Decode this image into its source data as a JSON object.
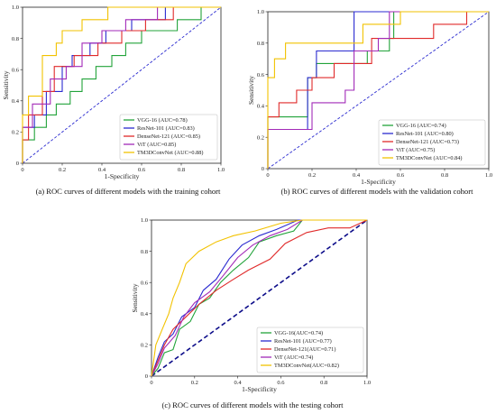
{
  "chart_data": [
    {
      "type": "line",
      "caption": "(a) ROC curves of different models with the training cohort",
      "xlabel": "1-Specificity",
      "ylabel": "Sensitivity",
      "xlim": [
        0,
        1
      ],
      "ylim": [
        0,
        1
      ],
      "xticks": [
        "0",
        "0.2",
        "0.4",
        "0.6",
        "0.8",
        "1.0"
      ],
      "yticks": [
        "0",
        "0.2",
        "0.4",
        "0.6",
        "0.8",
        "1.0"
      ],
      "legend_position": "lower-right",
      "chance_line": {
        "color": "#2b2bd0",
        "style": "dashed"
      },
      "series": [
        {
          "name": "VGG-16 (AUC=0.78)",
          "color": "#22a33a",
          "points": [
            [
              0,
              0
            ],
            [
              0,
              0.15
            ],
            [
              0.06,
              0.15
            ],
            [
              0.06,
              0.23
            ],
            [
              0.12,
              0.23
            ],
            [
              0.12,
              0.31
            ],
            [
              0.17,
              0.31
            ],
            [
              0.17,
              0.38
            ],
            [
              0.24,
              0.38
            ],
            [
              0.24,
              0.46
            ],
            [
              0.3,
              0.46
            ],
            [
              0.3,
              0.54
            ],
            [
              0.37,
              0.54
            ],
            [
              0.37,
              0.62
            ],
            [
              0.45,
              0.62
            ],
            [
              0.45,
              0.69
            ],
            [
              0.52,
              0.69
            ],
            [
              0.52,
              0.77
            ],
            [
              0.6,
              0.77
            ],
            [
              0.6,
              0.85
            ],
            [
              0.78,
              0.85
            ],
            [
              0.78,
              0.92
            ],
            [
              0.9,
              0.92
            ],
            [
              0.9,
              1
            ],
            [
              1,
              1
            ]
          ]
        },
        {
          "name": "ResNet-101 (AUC=0.83)",
          "color": "#2b2bd0",
          "points": [
            [
              0,
              0
            ],
            [
              0,
              0.23
            ],
            [
              0.06,
              0.23
            ],
            [
              0.06,
              0.31
            ],
            [
              0.12,
              0.31
            ],
            [
              0.12,
              0.46
            ],
            [
              0.2,
              0.46
            ],
            [
              0.2,
              0.62
            ],
            [
              0.25,
              0.62
            ],
            [
              0.25,
              0.69
            ],
            [
              0.34,
              0.69
            ],
            [
              0.34,
              0.77
            ],
            [
              0.42,
              0.77
            ],
            [
              0.42,
              0.85
            ],
            [
              0.55,
              0.85
            ],
            [
              0.55,
              0.92
            ],
            [
              0.72,
              0.92
            ],
            [
              0.72,
              1
            ],
            [
              1,
              1
            ]
          ]
        },
        {
          "name": "DenseNet-121 (AUC=0.85)",
          "color": "#e02a2a",
          "points": [
            [
              0,
              0
            ],
            [
              0,
              0.15
            ],
            [
              0.03,
              0.15
            ],
            [
              0.03,
              0.31
            ],
            [
              0.1,
              0.31
            ],
            [
              0.1,
              0.46
            ],
            [
              0.16,
              0.46
            ],
            [
              0.16,
              0.62
            ],
            [
              0.26,
              0.62
            ],
            [
              0.26,
              0.69
            ],
            [
              0.38,
              0.69
            ],
            [
              0.38,
              0.77
            ],
            [
              0.5,
              0.77
            ],
            [
              0.5,
              0.85
            ],
            [
              0.62,
              0.85
            ],
            [
              0.62,
              0.92
            ],
            [
              0.76,
              0.92
            ],
            [
              0.76,
              1
            ],
            [
              1,
              1
            ]
          ]
        },
        {
          "name": "ViT (AUC=0.85)",
          "color": "#a22ab8",
          "points": [
            [
              0,
              0
            ],
            [
              0,
              0.23
            ],
            [
              0.05,
              0.23
            ],
            [
              0.05,
              0.38
            ],
            [
              0.14,
              0.38
            ],
            [
              0.14,
              0.54
            ],
            [
              0.22,
              0.54
            ],
            [
              0.22,
              0.62
            ],
            [
              0.3,
              0.62
            ],
            [
              0.3,
              0.77
            ],
            [
              0.4,
              0.77
            ],
            [
              0.4,
              0.85
            ],
            [
              0.52,
              0.85
            ],
            [
              0.52,
              0.92
            ],
            [
              0.68,
              0.92
            ],
            [
              0.68,
              1
            ],
            [
              1,
              1
            ]
          ]
        },
        {
          "name": "TM3DConvNet (AUC=0.88)",
          "color": "#f2c200",
          "points": [
            [
              0,
              0
            ],
            [
              0,
              0.31
            ],
            [
              0.03,
              0.31
            ],
            [
              0.03,
              0.43
            ],
            [
              0.1,
              0.43
            ],
            [
              0.1,
              0.69
            ],
            [
              0.17,
              0.69
            ],
            [
              0.17,
              0.77
            ],
            [
              0.2,
              0.77
            ],
            [
              0.2,
              0.85
            ],
            [
              0.3,
              0.85
            ],
            [
              0.3,
              0.92
            ],
            [
              0.43,
              0.92
            ],
            [
              0.43,
              1
            ],
            [
              1,
              1
            ]
          ]
        }
      ]
    },
    {
      "type": "line",
      "caption": "(b) ROC curves of different models with the validation cohort",
      "xlabel": "1-Specificity",
      "ylabel": "Sensitivity",
      "xlim": [
        0,
        1
      ],
      "ylim": [
        0,
        1
      ],
      "xticks": [
        "0",
        "0.2",
        "0.4",
        "0.6",
        "0.8",
        "1.0"
      ],
      "yticks": [
        "0",
        "0.2",
        "0.4",
        "0.6",
        "0.8",
        "1.0"
      ],
      "legend_position": "lower-right",
      "chance_line": {
        "color": "#2b2bd0",
        "style": "dashed"
      },
      "series": [
        {
          "name": "VGG-16 (AUC=0.74)",
          "color": "#22a33a",
          "points": [
            [
              0,
              0
            ],
            [
              0,
              0.33
            ],
            [
              0.18,
              0.33
            ],
            [
              0.18,
              0.58
            ],
            [
              0.22,
              0.58
            ],
            [
              0.22,
              0.67
            ],
            [
              0.45,
              0.67
            ],
            [
              0.45,
              0.75
            ],
            [
              0.55,
              0.75
            ],
            [
              0.55,
              0.83
            ],
            [
              0.57,
              0.83
            ],
            [
              0.57,
              1
            ],
            [
              1,
              1
            ]
          ]
        },
        {
          "name": "ResNet-101 (AUC=0.80)",
          "color": "#2b2bd0",
          "points": [
            [
              0,
              0
            ],
            [
              0,
              0.25
            ],
            [
              0.18,
              0.25
            ],
            [
              0.18,
              0.58
            ],
            [
              0.22,
              0.58
            ],
            [
              0.22,
              0.75
            ],
            [
              0.39,
              0.75
            ],
            [
              0.39,
              1
            ],
            [
              1,
              1
            ]
          ]
        },
        {
          "name": "DenseNet-121 (AUC=0.73)",
          "color": "#e02a2a",
          "points": [
            [
              0,
              0
            ],
            [
              0,
              0.33
            ],
            [
              0.05,
              0.33
            ],
            [
              0.05,
              0.42
            ],
            [
              0.13,
              0.42
            ],
            [
              0.13,
              0.5
            ],
            [
              0.2,
              0.5
            ],
            [
              0.2,
              0.58
            ],
            [
              0.3,
              0.58
            ],
            [
              0.3,
              0.67
            ],
            [
              0.47,
              0.67
            ],
            [
              0.47,
              0.83
            ],
            [
              0.75,
              0.83
            ],
            [
              0.75,
              0.92
            ],
            [
              0.9,
              0.92
            ],
            [
              0.9,
              1
            ],
            [
              1,
              1
            ]
          ]
        },
        {
          "name": "ViT (AUC=0.75)",
          "color": "#a22ab8",
          "points": [
            [
              0,
              0
            ],
            [
              0,
              0.25
            ],
            [
              0.2,
              0.25
            ],
            [
              0.2,
              0.42
            ],
            [
              0.35,
              0.42
            ],
            [
              0.35,
              0.5
            ],
            [
              0.39,
              0.5
            ],
            [
              0.39,
              0.75
            ],
            [
              0.5,
              0.75
            ],
            [
              0.5,
              0.83
            ],
            [
              0.55,
              0.83
            ],
            [
              0.55,
              1
            ],
            [
              1,
              1
            ]
          ]
        },
        {
          "name": "TM3DConvNet (AUC=0.84)",
          "color": "#f2c200",
          "points": [
            [
              0,
              0
            ],
            [
              0,
              0.58
            ],
            [
              0.03,
              0.58
            ],
            [
              0.03,
              0.7
            ],
            [
              0.08,
              0.7
            ],
            [
              0.08,
              0.8
            ],
            [
              0.15,
              0.8
            ],
            [
              0.15,
              0.8
            ],
            [
              0.43,
              0.8
            ],
            [
              0.43,
              0.92
            ],
            [
              0.6,
              0.92
            ],
            [
              0.6,
              1
            ],
            [
              1,
              1
            ]
          ]
        }
      ]
    },
    {
      "type": "line",
      "caption": "(c) ROC curves of different models with the testing cohort",
      "xlabel": "1-Specificity",
      "ylabel": "Sensitivity",
      "xlim": [
        0,
        1
      ],
      "ylim": [
        0,
        1
      ],
      "xticks": [
        "0",
        "0.2",
        "0.4",
        "0.6",
        "0.8",
        "1.0"
      ],
      "yticks": [
        "0",
        "0.2",
        "0.4",
        "0.6",
        "0.8",
        "1.0"
      ],
      "legend_position": "lower-right",
      "chance_line": {
        "color": "#0d0d8a",
        "style": "dashed"
      },
      "series": [
        {
          "name": "VGG-16(AUC=0.74)",
          "color": "#22a33a",
          "points": [
            [
              0,
              0
            ],
            [
              0.03,
              0.05
            ],
            [
              0.06,
              0.15
            ],
            [
              0.1,
              0.17
            ],
            [
              0.13,
              0.3
            ],
            [
              0.18,
              0.35
            ],
            [
              0.22,
              0.46
            ],
            [
              0.27,
              0.5
            ],
            [
              0.32,
              0.6
            ],
            [
              0.38,
              0.68
            ],
            [
              0.45,
              0.76
            ],
            [
              0.5,
              0.86
            ],
            [
              0.58,
              0.9
            ],
            [
              0.66,
              0.93
            ],
            [
              0.7,
              1
            ],
            [
              1,
              1
            ]
          ]
        },
        {
          "name": "ResNet-101 (AUC=0.77)",
          "color": "#2b2bd0",
          "points": [
            [
              0,
              0
            ],
            [
              0.03,
              0.12
            ],
            [
              0.06,
              0.22
            ],
            [
              0.1,
              0.27
            ],
            [
              0.14,
              0.38
            ],
            [
              0.2,
              0.44
            ],
            [
              0.24,
              0.55
            ],
            [
              0.3,
              0.62
            ],
            [
              0.36,
              0.75
            ],
            [
              0.42,
              0.84
            ],
            [
              0.5,
              0.9
            ],
            [
              0.58,
              0.94
            ],
            [
              0.68,
              1
            ],
            [
              1,
              1
            ]
          ]
        },
        {
          "name": "DenseNet-121(AUC=0.71)",
          "color": "#e02a2a",
          "points": [
            [
              0,
              0
            ],
            [
              0.03,
              0.1
            ],
            [
              0.06,
              0.2
            ],
            [
              0.1,
              0.3
            ],
            [
              0.16,
              0.38
            ],
            [
              0.22,
              0.46
            ],
            [
              0.3,
              0.55
            ],
            [
              0.38,
              0.62
            ],
            [
              0.45,
              0.68
            ],
            [
              0.55,
              0.75
            ],
            [
              0.62,
              0.85
            ],
            [
              0.72,
              0.92
            ],
            [
              0.82,
              0.95
            ],
            [
              0.92,
              0.95
            ],
            [
              1,
              1
            ]
          ]
        },
        {
          "name": "ViT (AUC=0.74)",
          "color": "#a22ab8",
          "points": [
            [
              0,
              0
            ],
            [
              0.03,
              0.08
            ],
            [
              0.06,
              0.18
            ],
            [
              0.11,
              0.26
            ],
            [
              0.15,
              0.38
            ],
            [
              0.2,
              0.47
            ],
            [
              0.27,
              0.54
            ],
            [
              0.33,
              0.64
            ],
            [
              0.4,
              0.76
            ],
            [
              0.47,
              0.84
            ],
            [
              0.55,
              0.9
            ],
            [
              0.63,
              0.94
            ],
            [
              0.7,
              1
            ],
            [
              1,
              1
            ]
          ]
        },
        {
          "name": "TM3DConvNet(AUC=0.82)",
          "color": "#f2c200",
          "points": [
            [
              0,
              0
            ],
            [
              0.02,
              0.2
            ],
            [
              0.05,
              0.3
            ],
            [
              0.08,
              0.4
            ],
            [
              0.1,
              0.5
            ],
            [
              0.13,
              0.6
            ],
            [
              0.16,
              0.72
            ],
            [
              0.22,
              0.8
            ],
            [
              0.3,
              0.86
            ],
            [
              0.38,
              0.9
            ],
            [
              0.48,
              0.93
            ],
            [
              0.6,
              0.98
            ],
            [
              0.7,
              1
            ],
            [
              1,
              1
            ]
          ]
        }
      ]
    }
  ]
}
